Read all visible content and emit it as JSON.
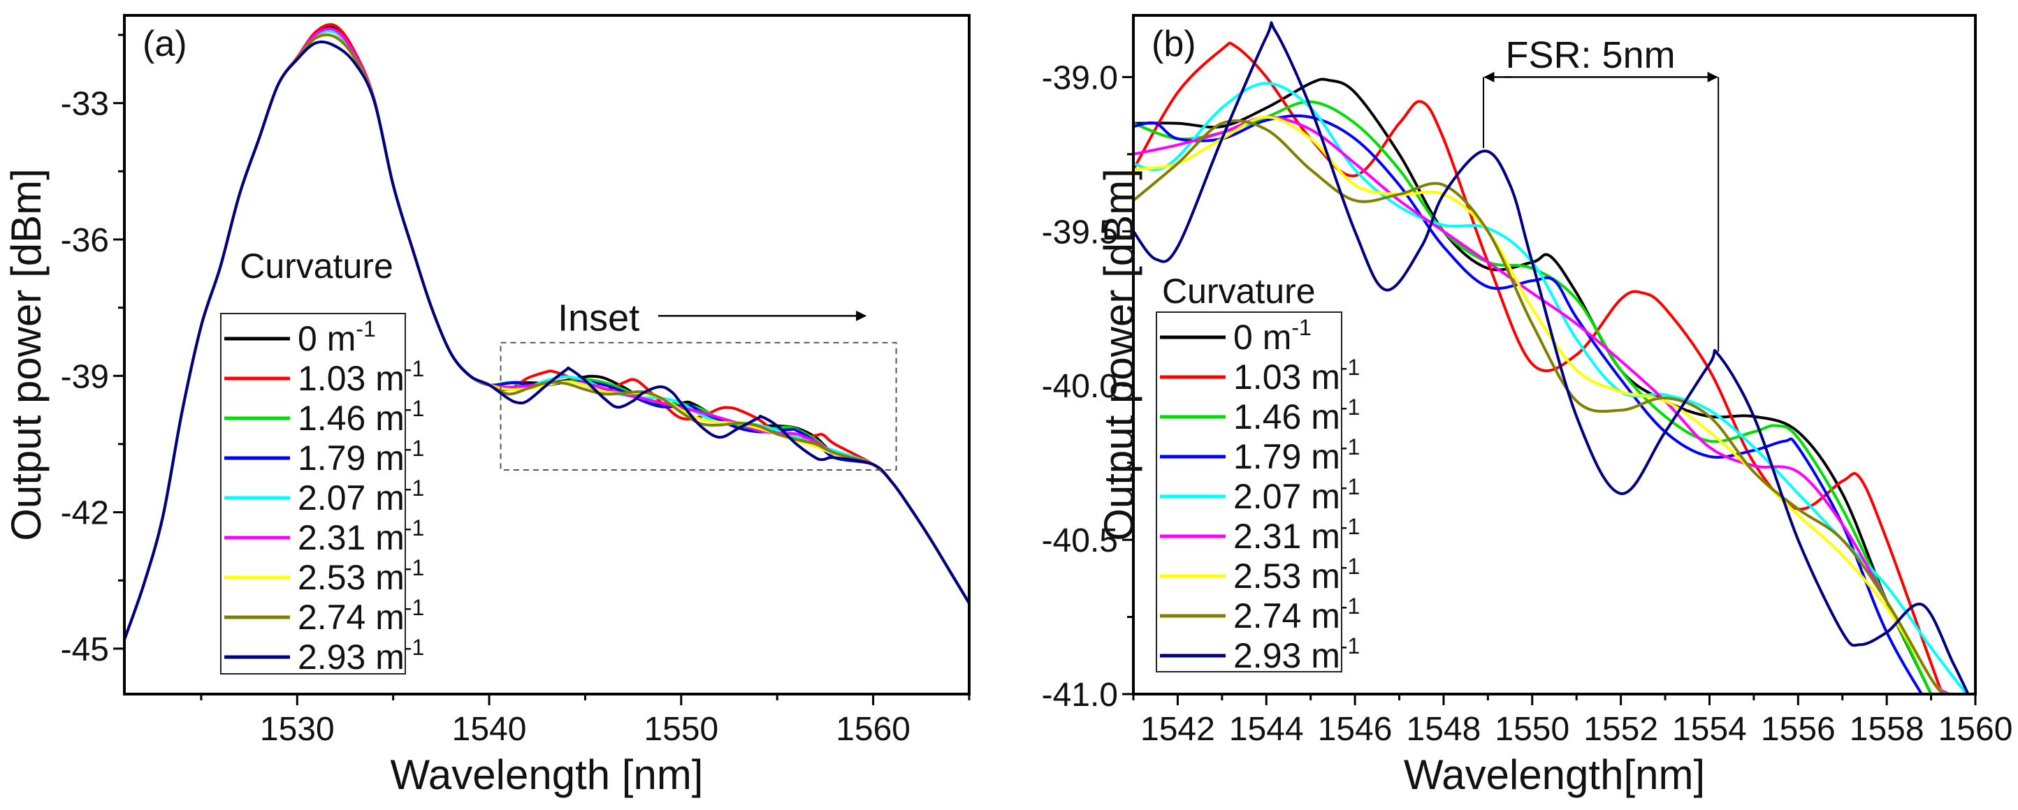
{
  "chart_data": [
    {
      "type": "line",
      "panel_label": "(a)",
      "xlabel": "Wavelength [nm]",
      "ylabel": "Output power [dBm]",
      "xlim": [
        1521,
        1565
      ],
      "ylim": [
        -46,
        -31.07
      ],
      "xticks": [
        1530,
        1540,
        1550,
        1560
      ],
      "yticks": [
        -33,
        -36,
        -39,
        -42,
        -45
      ],
      "grid": false,
      "legend_title": "Curvature",
      "legend_placement": "center-left",
      "annotations": {
        "inset_label": "Inset"
      },
      "shared_left_points": [
        [
          1521,
          -44.8
        ],
        [
          1522,
          -43.6
        ],
        [
          1523,
          -42.1
        ],
        [
          1524,
          -39.8
        ],
        [
          1525,
          -37.9
        ],
        [
          1526,
          -36.6
        ],
        [
          1527,
          -35.0
        ],
        [
          1528,
          -33.8
        ],
        [
          1529,
          -32.6
        ],
        [
          1530,
          -32.0
        ],
        [
          1531,
          -31.45
        ],
        [
          1532,
          -31.35
        ],
        [
          1533,
          -31.9
        ],
        [
          1534,
          -32.9
        ],
        [
          1535,
          -34.8
        ],
        [
          1536,
          -36.2
        ],
        [
          1537,
          -37.5
        ],
        [
          1538,
          -38.5
        ],
        [
          1539,
          -39.0
        ],
        [
          1540,
          -39.2
        ]
      ],
      "shared_right_points": [
        [
          1560,
          -40.95
        ],
        [
          1561,
          -41.35
        ],
        [
          1562,
          -41.95
        ],
        [
          1563,
          -42.6
        ],
        [
          1564,
          -43.3
        ],
        [
          1565,
          -44.0
        ]
      ],
      "middle_segment": "same data as panel (b) for 1541–1558 nm",
      "series_peak_dBm": [
        -31.35,
        -31.3,
        -31.4,
        -31.45,
        -31.45,
        -31.4,
        -31.55,
        -31.55,
        -31.75
      ]
    },
    {
      "type": "line",
      "panel_label": "(b)",
      "xlabel": "Wavelength[nm]",
      "ylabel": "Output power [dBm]",
      "xlim": [
        1541,
        1560
      ],
      "ylim": [
        -41.0,
        -38.8
      ],
      "xticks": [
        1542,
        1544,
        1546,
        1548,
        1550,
        1552,
        1554,
        1556,
        1558,
        1560
      ],
      "yticks": [
        -39.0,
        -39.5,
        -40.0,
        -40.5,
        -41.0
      ],
      "grid": false,
      "legend_title": "Curvature",
      "legend_placement": "center-left",
      "annotations": {
        "fsr_label": "FSR: 5nm",
        "fsr_from": 1548.9,
        "fsr_to": 1554.2
      },
      "series": [
        {
          "value": "0",
          "unit": "m",
          "exp": "-1",
          "color": "#000000",
          "points": [
            [
              1541,
              -39.15
            ],
            [
              1542,
              -39.15
            ],
            [
              1543,
              -39.16
            ],
            [
              1544,
              -39.1
            ],
            [
              1545,
              -39.02
            ],
            [
              1545.4,
              -39.01
            ],
            [
              1546,
              -39.05
            ],
            [
              1547,
              -39.25
            ],
            [
              1548,
              -39.5
            ],
            [
              1549,
              -39.62
            ],
            [
              1550,
              -39.6
            ],
            [
              1550.4,
              -39.58
            ],
            [
              1551,
              -39.7
            ],
            [
              1552,
              -39.95
            ],
            [
              1553,
              -40.05
            ],
            [
              1554,
              -40.1
            ],
            [
              1555,
              -40.1
            ],
            [
              1556,
              -40.15
            ],
            [
              1557,
              -40.35
            ],
            [
              1558,
              -40.7
            ],
            [
              1559,
              -41.0
            ],
            [
              1560,
              -41.3
            ]
          ]
        },
        {
          "value": "1.03",
          "unit": "m",
          "exp": "-1",
          "color": "#ff0000",
          "points": [
            [
              1541,
              -39.3
            ],
            [
              1542,
              -39.05
            ],
            [
              1543,
              -38.91
            ],
            [
              1543.3,
              -38.9
            ],
            [
              1544,
              -39.0
            ],
            [
              1545,
              -39.2
            ],
            [
              1546,
              -39.32
            ],
            [
              1547,
              -39.15
            ],
            [
              1547.5,
              -39.08
            ],
            [
              1548,
              -39.2
            ],
            [
              1549,
              -39.6
            ],
            [
              1550,
              -39.93
            ],
            [
              1551,
              -39.9
            ],
            [
              1552,
              -39.72
            ],
            [
              1552.5,
              -39.7
            ],
            [
              1553,
              -39.75
            ],
            [
              1554,
              -39.95
            ],
            [
              1555,
              -40.25
            ],
            [
              1556,
              -40.4
            ],
            [
              1557,
              -40.31
            ],
            [
              1557.4,
              -40.3
            ],
            [
              1558,
              -40.5
            ],
            [
              1559,
              -40.9
            ],
            [
              1560,
              -41.3
            ]
          ]
        },
        {
          "value": "1.46",
          "unit": "m",
          "exp": "-1",
          "color": "#00dd00",
          "points": [
            [
              1541,
              -39.15
            ],
            [
              1542,
              -39.2
            ],
            [
              1543,
              -39.18
            ],
            [
              1544,
              -39.13
            ],
            [
              1545,
              -39.08
            ],
            [
              1546,
              -39.15
            ],
            [
              1547,
              -39.3
            ],
            [
              1548,
              -39.5
            ],
            [
              1549,
              -39.6
            ],
            [
              1550,
              -39.62
            ],
            [
              1551,
              -39.72
            ],
            [
              1552,
              -39.95
            ],
            [
              1553,
              -40.1
            ],
            [
              1554,
              -40.18
            ],
            [
              1555,
              -40.15
            ],
            [
              1555.5,
              -40.13
            ],
            [
              1556,
              -40.17
            ],
            [
              1557,
              -40.4
            ],
            [
              1558,
              -40.7
            ],
            [
              1559,
              -41.0
            ],
            [
              1560,
              -41.3
            ]
          ]
        },
        {
          "value": "1.79",
          "unit": "m",
          "exp": "-1",
          "color": "#0000ff",
          "points": [
            [
              1541,
              -39.16
            ],
            [
              1541.5,
              -39.15
            ],
            [
              1542,
              -39.2
            ],
            [
              1543,
              -39.2
            ],
            [
              1544,
              -39.14
            ],
            [
              1545,
              -39.13
            ],
            [
              1546,
              -39.2
            ],
            [
              1547,
              -39.35
            ],
            [
              1548,
              -39.55
            ],
            [
              1549,
              -39.68
            ],
            [
              1550,
              -39.66
            ],
            [
              1550.5,
              -39.66
            ],
            [
              1551,
              -39.78
            ],
            [
              1552,
              -39.98
            ],
            [
              1553,
              -40.15
            ],
            [
              1554,
              -40.23
            ],
            [
              1555,
              -40.21
            ],
            [
              1555.7,
              -40.18
            ],
            [
              1556,
              -40.2
            ],
            [
              1557,
              -40.45
            ],
            [
              1558,
              -40.8
            ],
            [
              1559,
              -41.05
            ]
          ]
        },
        {
          "value": "2.07",
          "unit": "m",
          "exp": "-1",
          "color": "#00ffff",
          "points": [
            [
              1541,
              -39.28
            ],
            [
              1541.5,
              -39.3
            ],
            [
              1542,
              -39.26
            ],
            [
              1543,
              -39.1
            ],
            [
              1544,
              -39.02
            ],
            [
              1545,
              -39.1
            ],
            [
              1546,
              -39.3
            ],
            [
              1547,
              -39.42
            ],
            [
              1548,
              -39.48
            ],
            [
              1549,
              -39.49
            ],
            [
              1550,
              -39.6
            ],
            [
              1551,
              -39.85
            ],
            [
              1552,
              -40.02
            ],
            [
              1553,
              -40.03
            ],
            [
              1554,
              -40.08
            ],
            [
              1555,
              -40.2
            ],
            [
              1556,
              -40.35
            ],
            [
              1557,
              -40.5
            ],
            [
              1558,
              -40.65
            ],
            [
              1559,
              -40.85
            ],
            [
              1559.8,
              -41.0
            ]
          ]
        },
        {
          "value": "2.31",
          "unit": "m",
          "exp": "-1",
          "color": "#ff00ff",
          "points": [
            [
              1541,
              -39.25
            ],
            [
              1542,
              -39.22
            ],
            [
              1543,
              -39.18
            ],
            [
              1544,
              -39.13
            ],
            [
              1545,
              -39.17
            ],
            [
              1546,
              -39.28
            ],
            [
              1547,
              -39.4
            ],
            [
              1548,
              -39.5
            ],
            [
              1549,
              -39.6
            ],
            [
              1550,
              -39.7
            ],
            [
              1551,
              -39.8
            ],
            [
              1552,
              -39.92
            ],
            [
              1553,
              -40.05
            ],
            [
              1554,
              -40.2
            ],
            [
              1555,
              -40.26
            ],
            [
              1556,
              -40.28
            ],
            [
              1557,
              -40.45
            ],
            [
              1558,
              -40.7
            ],
            [
              1559,
              -40.95
            ],
            [
              1559.4,
              -41.0
            ]
          ]
        },
        {
          "value": "2.53",
          "unit": "m",
          "exp": "-1",
          "color": "#ffff00",
          "points": [
            [
              1541,
              -39.3
            ],
            [
              1542,
              -39.28
            ],
            [
              1543,
              -39.2
            ],
            [
              1544,
              -39.13
            ],
            [
              1545,
              -39.2
            ],
            [
              1546,
              -39.35
            ],
            [
              1547,
              -39.38
            ],
            [
              1548,
              -39.38
            ],
            [
              1549,
              -39.5
            ],
            [
              1550,
              -39.75
            ],
            [
              1551,
              -39.95
            ],
            [
              1552,
              -40.02
            ],
            [
              1553,
              -40.05
            ],
            [
              1554,
              -40.15
            ],
            [
              1555,
              -40.28
            ],
            [
              1556,
              -40.42
            ],
            [
              1557,
              -40.55
            ],
            [
              1558,
              -40.72
            ],
            [
              1559,
              -40.95
            ],
            [
              1559.3,
              -41.0
            ]
          ]
        },
        {
          "value": "2.74",
          "unit": "m",
          "exp": "-1",
          "color": "#808000",
          "points": [
            [
              1541,
              -39.4
            ],
            [
              1542,
              -39.28
            ],
            [
              1543,
              -39.15
            ],
            [
              1544,
              -39.17
            ],
            [
              1545,
              -39.3
            ],
            [
              1546,
              -39.4
            ],
            [
              1547,
              -39.38
            ],
            [
              1548,
              -39.35
            ],
            [
              1549,
              -39.5
            ],
            [
              1550,
              -39.8
            ],
            [
              1551,
              -40.05
            ],
            [
              1552,
              -40.08
            ],
            [
              1553,
              -40.04
            ],
            [
              1554,
              -40.1
            ],
            [
              1555,
              -40.28
            ],
            [
              1556,
              -40.4
            ],
            [
              1557,
              -40.5
            ],
            [
              1558,
              -40.7
            ],
            [
              1559,
              -40.95
            ],
            [
              1559.3,
              -41.0
            ]
          ]
        },
        {
          "value": "2.93",
          "unit": "m",
          "exp": "-1",
          "color": "#000080",
          "points": [
            [
              1541,
              -39.5
            ],
            [
              1541.5,
              -39.59
            ],
            [
              1542,
              -39.55
            ],
            [
              1543,
              -39.2
            ],
            [
              1544,
              -38.87
            ],
            [
              1544.2,
              -38.85
            ],
            [
              1545,
              -39.1
            ],
            [
              1546,
              -39.5
            ],
            [
              1546.7,
              -39.69
            ],
            [
              1547.5,
              -39.55
            ],
            [
              1548,
              -39.38
            ],
            [
              1548.9,
              -39.24
            ],
            [
              1549.5,
              -39.35
            ],
            [
              1550,
              -39.6
            ],
            [
              1551,
              -40.1
            ],
            [
              1552,
              -40.35
            ],
            [
              1553,
              -40.15
            ],
            [
              1554,
              -39.93
            ],
            [
              1554.2,
              -39.9
            ],
            [
              1555,
              -40.1
            ],
            [
              1556,
              -40.5
            ],
            [
              1557,
              -40.8
            ],
            [
              1557.4,
              -40.84
            ],
            [
              1558,
              -40.8
            ],
            [
              1558.8,
              -40.71
            ],
            [
              1559.5,
              -40.9
            ],
            [
              1560,
              -41.05
            ]
          ]
        }
      ]
    }
  ]
}
